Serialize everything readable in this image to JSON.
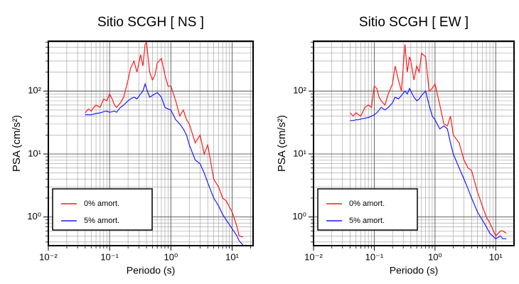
{
  "chart_data": [
    {
      "type": "line",
      "title": "Sitio SCGH [ NS ]",
      "xlabel": "Periodo (s)",
      "ylabel": "PSA (cm/s²)",
      "xscale": "log",
      "yscale": "log",
      "grid": true,
      "legend": "lower left",
      "xlim": [
        0.01,
        22
      ],
      "ylim": [
        0.35,
        620
      ],
      "xticks": [
        {
          "value": 0.01,
          "label": "10⁻²"
        },
        {
          "value": 0.1,
          "label": "10⁻¹"
        },
        {
          "value": 1,
          "label": "10⁰"
        },
        {
          "value": 10,
          "label": "10¹"
        }
      ],
      "yticks": [
        {
          "value": 1,
          "label": "10⁰"
        },
        {
          "value": 10,
          "label": "10¹"
        },
        {
          "value": 100,
          "label": "10²"
        }
      ],
      "x_minor_ticks": [
        0.02,
        0.03,
        0.04,
        0.05,
        0.06,
        0.07,
        0.08,
        0.09,
        0.2,
        0.3,
        0.4,
        0.5,
        0.6,
        0.7,
        0.8,
        0.9,
        2,
        3,
        4,
        5,
        6,
        7,
        8,
        9,
        20
      ],
      "y_minor_ticks": [
        0.4,
        0.5,
        0.6,
        0.7,
        0.8,
        0.9,
        2,
        3,
        4,
        5,
        6,
        7,
        8,
        9,
        20,
        30,
        40,
        50,
        60,
        70,
        80,
        90,
        200,
        300,
        400,
        500,
        600
      ],
      "x": [
        0.04,
        0.045,
        0.05,
        0.055,
        0.06,
        0.07,
        0.08,
        0.09,
        0.1,
        0.11,
        0.12,
        0.13,
        0.15,
        0.17,
        0.2,
        0.22,
        0.25,
        0.28,
        0.32,
        0.35,
        0.38,
        0.4,
        0.45,
        0.5,
        0.55,
        0.6,
        0.7,
        0.8,
        0.9,
        1.0,
        1.2,
        1.4,
        1.6,
        1.8,
        2.0,
        2.5,
        3,
        3.5,
        4,
        5,
        6,
        7,
        8,
        10,
        12,
        13,
        15
      ],
      "series": [
        {
          "name": "0% amort.",
          "color": "#ff1a1a",
          "values": [
            45,
            52,
            48,
            55,
            60,
            55,
            75,
            70,
            90,
            75,
            60,
            55,
            65,
            80,
            150,
            230,
            300,
            200,
            380,
            250,
            550,
            600,
            200,
            150,
            180,
            280,
            330,
            180,
            120,
            120,
            70,
            40,
            50,
            35,
            30,
            15,
            20,
            10,
            14,
            4,
            3,
            2,
            1.8,
            1.2,
            0.7,
            0.5,
            0.48
          ]
        },
        {
          "name": "5% amort.",
          "color": "#1a1aff",
          "values": [
            42,
            42,
            42,
            43,
            44,
            45,
            47,
            48,
            46,
            47,
            48,
            46,
            55,
            60,
            70,
            75,
            80,
            75,
            90,
            100,
            130,
            110,
            80,
            85,
            90,
            95,
            80,
            55,
            52,
            50,
            35,
            30,
            25,
            20,
            14,
            8,
            7,
            5,
            3.5,
            2,
            1.5,
            1.1,
            0.9,
            0.65,
            0.5,
            0.42,
            0.36
          ]
        }
      ]
    },
    {
      "type": "line",
      "title": "Sitio SCGH [ EW ]",
      "xlabel": "Periodo (s)",
      "ylabel": "PSA (cm/s²)",
      "xscale": "log",
      "yscale": "log",
      "grid": true,
      "legend": "lower left",
      "xlim": [
        0.01,
        20
      ],
      "ylim": [
        0.35,
        620
      ],
      "xticks": [
        {
          "value": 0.01,
          "label": "10⁻²"
        },
        {
          "value": 0.1,
          "label": "10⁻¹"
        },
        {
          "value": 1,
          "label": "10⁰"
        },
        {
          "value": 10,
          "label": "10¹"
        }
      ],
      "yticks": [
        {
          "value": 1,
          "label": "10⁰"
        },
        {
          "value": 10,
          "label": "10¹"
        },
        {
          "value": 100,
          "label": "10²"
        }
      ],
      "x_minor_ticks": [
        0.02,
        0.03,
        0.04,
        0.05,
        0.06,
        0.07,
        0.08,
        0.09,
        0.2,
        0.3,
        0.4,
        0.5,
        0.6,
        0.7,
        0.8,
        0.9,
        2,
        3,
        4,
        5,
        6,
        7,
        8,
        9
      ],
      "y_minor_ticks": [
        0.4,
        0.5,
        0.6,
        0.7,
        0.8,
        0.9,
        2,
        3,
        4,
        5,
        6,
        7,
        8,
        9,
        20,
        30,
        40,
        50,
        60,
        70,
        80,
        90,
        200,
        300,
        400,
        500,
        600
      ],
      "x": [
        0.04,
        0.045,
        0.05,
        0.055,
        0.06,
        0.07,
        0.08,
        0.09,
        0.1,
        0.11,
        0.12,
        0.13,
        0.15,
        0.17,
        0.2,
        0.22,
        0.25,
        0.28,
        0.32,
        0.35,
        0.38,
        0.4,
        0.45,
        0.5,
        0.55,
        0.6,
        0.7,
        0.8,
        0.9,
        1.0,
        1.2,
        1.4,
        1.6,
        1.8,
        2.0,
        2.5,
        3,
        3.5,
        4,
        5,
        6,
        7,
        8,
        10,
        12,
        13,
        15
      ],
      "series": [
        {
          "name": "0% amort.",
          "color": "#ff1a1a",
          "values": [
            45,
            40,
            45,
            42,
            40,
            55,
            60,
            55,
            120,
            110,
            80,
            70,
            60,
            90,
            130,
            250,
            150,
            100,
            550,
            200,
            350,
            300,
            150,
            250,
            200,
            400,
            350,
            100,
            110,
            130,
            60,
            30,
            28,
            40,
            20,
            15,
            8,
            6,
            5.5,
            2.5,
            1.5,
            1,
            0.8,
            0.5,
            0.6,
            0.6,
            0.55
          ]
        },
        {
          "name": "5% amort.",
          "color": "#1a1aff",
          "values": [
            34,
            34,
            35,
            35,
            36,
            37,
            38,
            40,
            42,
            45,
            50,
            55,
            50,
            55,
            65,
            80,
            75,
            85,
            100,
            90,
            110,
            100,
            80,
            70,
            75,
            85,
            100,
            60,
            40,
            35,
            25,
            28,
            25,
            15,
            10,
            6,
            4,
            2.8,
            2,
            1.2,
            0.9,
            0.7,
            0.55,
            0.45,
            0.5,
            0.45,
            0.45
          ]
        }
      ]
    }
  ]
}
